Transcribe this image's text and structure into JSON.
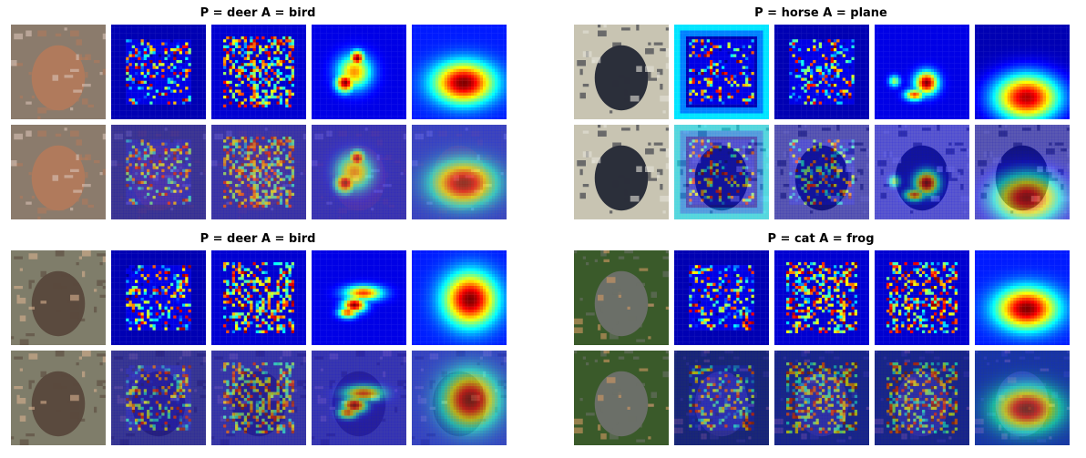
{
  "panels": [
    {
      "title": "P = deer A = bird",
      "photo_colors": {
        "bg": "#8b7b6c",
        "fg": "#b07a5c",
        "accent": "#d9c2b5"
      },
      "maps": [
        "sparse",
        "blobby",
        "mid",
        "center"
      ]
    },
    {
      "title": "P = horse A = plane",
      "photo_colors": {
        "bg": "#c8c4b2",
        "fg": "#2b2f3a",
        "accent": "#e5e2d8"
      },
      "maps": [
        "frame",
        "sparse-box",
        "mid-hook",
        "bottom"
      ]
    },
    {
      "title": "P = deer A = bird",
      "photo_colors": {
        "bg": "#7f7d6a",
        "fg": "#5a4a3e",
        "accent": "#d7b08f"
      },
      "maps": [
        "sparse",
        "band",
        "seven",
        "right"
      ]
    },
    {
      "title": "P = cat A = frog",
      "photo_colors": {
        "bg": "#3a5a2a",
        "fg": "#6b6f68",
        "accent": "#d49a64"
      },
      "maps": [
        "sparse",
        "diagonal",
        "columns",
        "center"
      ]
    }
  ],
  "palette": {
    "jet_low": "#00007f",
    "jet_mid": "#00ffff",
    "jet_high": "#ff0000"
  }
}
